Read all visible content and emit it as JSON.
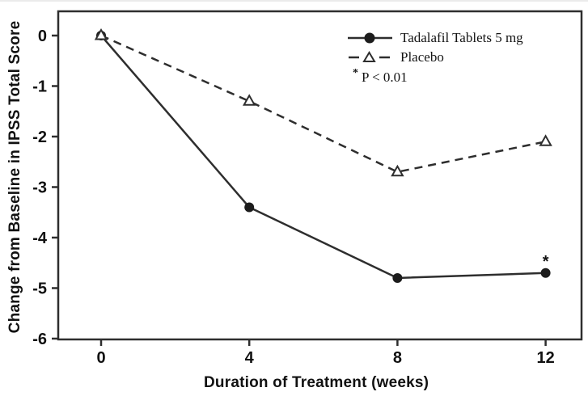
{
  "figure": {
    "background": "#ffffff",
    "axis_color": "#2e2e2e",
    "text_color": "#111111",
    "marker_fill": "#1c1c1c"
  },
  "chart_data": {
    "type": "line",
    "title": "",
    "xlabel": "Duration of Treatment (weeks)",
    "ylabel": "Change from Baseline in IPSS Total Score",
    "x": [
      0,
      4,
      8,
      12
    ],
    "xticks": [
      0,
      4,
      8,
      12
    ],
    "yticks": [
      0,
      -1,
      -2,
      -3,
      -4,
      -5,
      -6
    ],
    "xlim": [
      -1.2,
      13
    ],
    "ylim": [
      -6,
      0.5
    ],
    "grid": false,
    "series": [
      {
        "name": "Tadalafil Tablets 5 mg",
        "values": [
          0,
          -3.4,
          -4.8,
          -4.7
        ],
        "line": "solid",
        "marker": "filled-circle"
      },
      {
        "name": "Placebo",
        "values": [
          0,
          -1.3,
          -2.7,
          -2.1
        ],
        "line": "dashed",
        "marker": "open-triangle"
      }
    ],
    "annotations": [
      {
        "symbol": "*",
        "x": 12,
        "y": -4.7,
        "series": "Tadalafil Tablets 5 mg"
      }
    ],
    "legend": {
      "position": "top-right-inside",
      "entries": [
        "Tadalafil Tablets 5 mg",
        "Placebo"
      ],
      "note_symbol": "*",
      "note_text": "P < 0.01"
    }
  }
}
